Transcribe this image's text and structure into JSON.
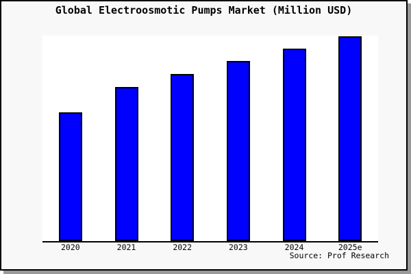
{
  "window": {
    "title_label": "Global Electroosmotic Pumps Market (Million USD)"
  },
  "source_label": "Source: Prof Research",
  "colors": {
    "background": "#f8f8f8",
    "plot_background": "#ffffff",
    "bar_fill": "#0000ff",
    "bar_border": "#000000",
    "axis": "#000000",
    "frame_border": "#000000",
    "shadow": "#999999",
    "text": "#000000"
  },
  "chart_data": {
    "type": "bar",
    "title": "Global Electroosmotic Pumps Market (Million USD)",
    "source": "Source: Prof Research",
    "categories": [
      "2020",
      "2021",
      "2022",
      "2023",
      "2024",
      "2025e"
    ],
    "values": [
      62.9,
      75.3,
      81.6,
      88.0,
      94.0,
      100.0
    ],
    "units": "relative index (no numeric y-axis shown; 2025e = 100)",
    "xlabel": "",
    "ylabel": "",
    "ylim": [
      0,
      100.5
    ],
    "grid": false,
    "legend": false,
    "y_axis_labels_visible": false,
    "bar_color": "#0000ff"
  }
}
